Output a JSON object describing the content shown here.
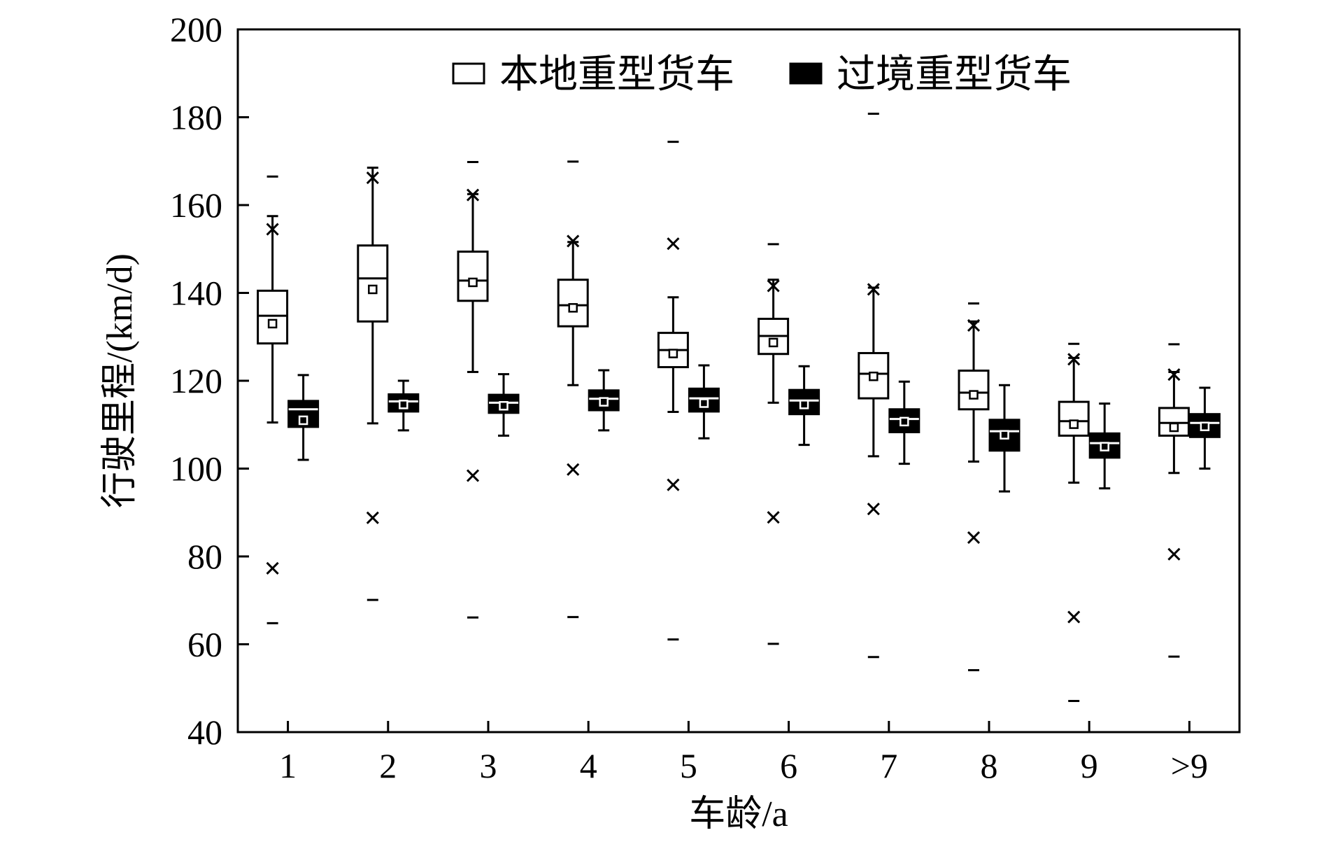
{
  "chart_data": {
    "type": "box",
    "xlabel": "车龄/a",
    "ylabel": "行驶里程/(km/d)",
    "ylim": [
      40,
      200
    ],
    "yticks": [
      40,
      60,
      80,
      100,
      120,
      140,
      160,
      180,
      200
    ],
    "categories": [
      "1",
      "2",
      "3",
      "4",
      "5",
      "6",
      "7",
      "8",
      "9",
      ">9"
    ],
    "legend": {
      "position": "top-center",
      "entries": [
        "本地重型货车",
        "过境重型货车"
      ]
    },
    "grid": false,
    "series": [
      {
        "name": "本地重型货车",
        "fill": "#ffffff",
        "boxes": [
          {
            "q1": 128.5,
            "median": 134.8,
            "q3": 140.5,
            "mean": 133.0,
            "whisker_low": 110.5,
            "whisker_high": 157.5,
            "outliers": [
              154.5,
              77.3
            ],
            "min": 64.8,
            "max": 166.5
          },
          {
            "q1": 133.5,
            "median": 143.3,
            "q3": 150.8,
            "mean": 140.8,
            "whisker_low": 110.3,
            "whisker_high": 168.5,
            "outliers": [
              166.2,
              88.8
            ],
            "min": 70.1,
            "max": 168.5
          },
          {
            "q1": 138.2,
            "median": 142.8,
            "q3": 149.4,
            "mean": 142.4,
            "whisker_low": 122.0,
            "whisker_high": 162.5,
            "outliers": [
              162.3,
              98.4
            ],
            "min": 66.1,
            "max": 169.8
          },
          {
            "q1": 132.4,
            "median": 137.2,
            "q3": 143.0,
            "mean": 136.6,
            "whisker_low": 119.0,
            "whisker_high": 151.6,
            "outliers": [
              151.8,
              99.8
            ],
            "min": 66.2,
            "max": 169.9
          },
          {
            "q1": 123.1,
            "median": 127.0,
            "q3": 130.9,
            "mean": 126.2,
            "whisker_low": 112.9,
            "whisker_high": 139.0,
            "outliers": [
              151.2,
              96.3
            ],
            "min": 61.1,
            "max": 174.4
          },
          {
            "q1": 126.1,
            "median": 130.2,
            "q3": 134.1,
            "mean": 128.7,
            "whisker_low": 115.0,
            "whisker_high": 143.0,
            "outliers": [
              141.6,
              88.9
            ],
            "min": 60.1,
            "max": 151.1
          },
          {
            "q1": 116.0,
            "median": 121.6,
            "q3": 126.3,
            "mean": 121.0,
            "whisker_low": 102.8,
            "whisker_high": 141.2,
            "outliers": [
              140.8,
              90.8
            ],
            "min": 57.1,
            "max": 180.8
          },
          {
            "q1": 113.5,
            "median": 117.3,
            "q3": 122.3,
            "mean": 116.8,
            "whisker_low": 101.6,
            "whisker_high": 133.5,
            "outliers": [
              132.6,
              84.3
            ],
            "min": 54.1,
            "max": 137.6
          },
          {
            "q1": 107.5,
            "median": 110.8,
            "q3": 115.2,
            "mean": 110.1,
            "whisker_low": 96.8,
            "whisker_high": 125.2,
            "outliers": [
              124.9,
              66.2
            ],
            "min": 47.1,
            "max": 128.4
          },
          {
            "q1": 107.5,
            "median": 110.4,
            "q3": 113.8,
            "mean": 109.4,
            "whisker_low": 99.0,
            "whisker_high": 122.0,
            "outliers": [
              121.4,
              80.5
            ],
            "min": 57.2,
            "max": 128.3
          }
        ]
      },
      {
        "name": "过境重型货车",
        "fill": "#000000",
        "boxes": [
          {
            "q1": 109.5,
            "median": 113.5,
            "q3": 115.4,
            "mean": 111.0,
            "whisker_low": 102.0,
            "whisker_high": 121.3,
            "outliers": [],
            "min": 102.0,
            "max": 121.3
          },
          {
            "q1": 113.0,
            "median": 115.3,
            "q3": 116.9,
            "mean": 114.6,
            "whisker_low": 108.7,
            "whisker_high": 120.0,
            "outliers": [],
            "min": 108.7,
            "max": 120.0
          },
          {
            "q1": 112.7,
            "median": 115.0,
            "q3": 116.8,
            "mean": 114.3,
            "whisker_low": 107.5,
            "whisker_high": 121.5,
            "outliers": [],
            "min": 107.5,
            "max": 121.5
          },
          {
            "q1": 113.3,
            "median": 115.9,
            "q3": 117.8,
            "mean": 115.2,
            "whisker_low": 108.7,
            "whisker_high": 122.4,
            "outliers": [],
            "min": 108.7,
            "max": 122.4
          },
          {
            "q1": 113.0,
            "median": 116.0,
            "q3": 118.2,
            "mean": 114.9,
            "whisker_low": 106.9,
            "whisker_high": 123.5,
            "outliers": [],
            "min": 106.9,
            "max": 123.5
          },
          {
            "q1": 112.4,
            "median": 115.5,
            "q3": 117.9,
            "mean": 114.6,
            "whisker_low": 105.4,
            "whisker_high": 123.3,
            "outliers": [],
            "min": 105.4,
            "max": 123.3
          },
          {
            "q1": 108.3,
            "median": 111.3,
            "q3": 113.5,
            "mean": 110.7,
            "whisker_low": 101.1,
            "whisker_high": 119.8,
            "outliers": [],
            "min": 101.1,
            "max": 119.8
          },
          {
            "q1": 104.1,
            "median": 108.5,
            "q3": 111.1,
            "mean": 107.7,
            "whisker_low": 94.8,
            "whisker_high": 119.0,
            "outliers": [],
            "min": 94.8,
            "max": 119.0
          },
          {
            "q1": 102.5,
            "median": 105.8,
            "q3": 108.0,
            "mean": 105.0,
            "whisker_low": 95.5,
            "whisker_high": 114.8,
            "outliers": [],
            "min": 95.5,
            "max": 114.8
          },
          {
            "q1": 107.2,
            "median": 110.4,
            "q3": 112.4,
            "mean": 109.6,
            "whisker_low": 100.0,
            "whisker_high": 118.4,
            "outliers": [],
            "min": 100.0,
            "max": 118.4
          }
        ]
      }
    ]
  }
}
